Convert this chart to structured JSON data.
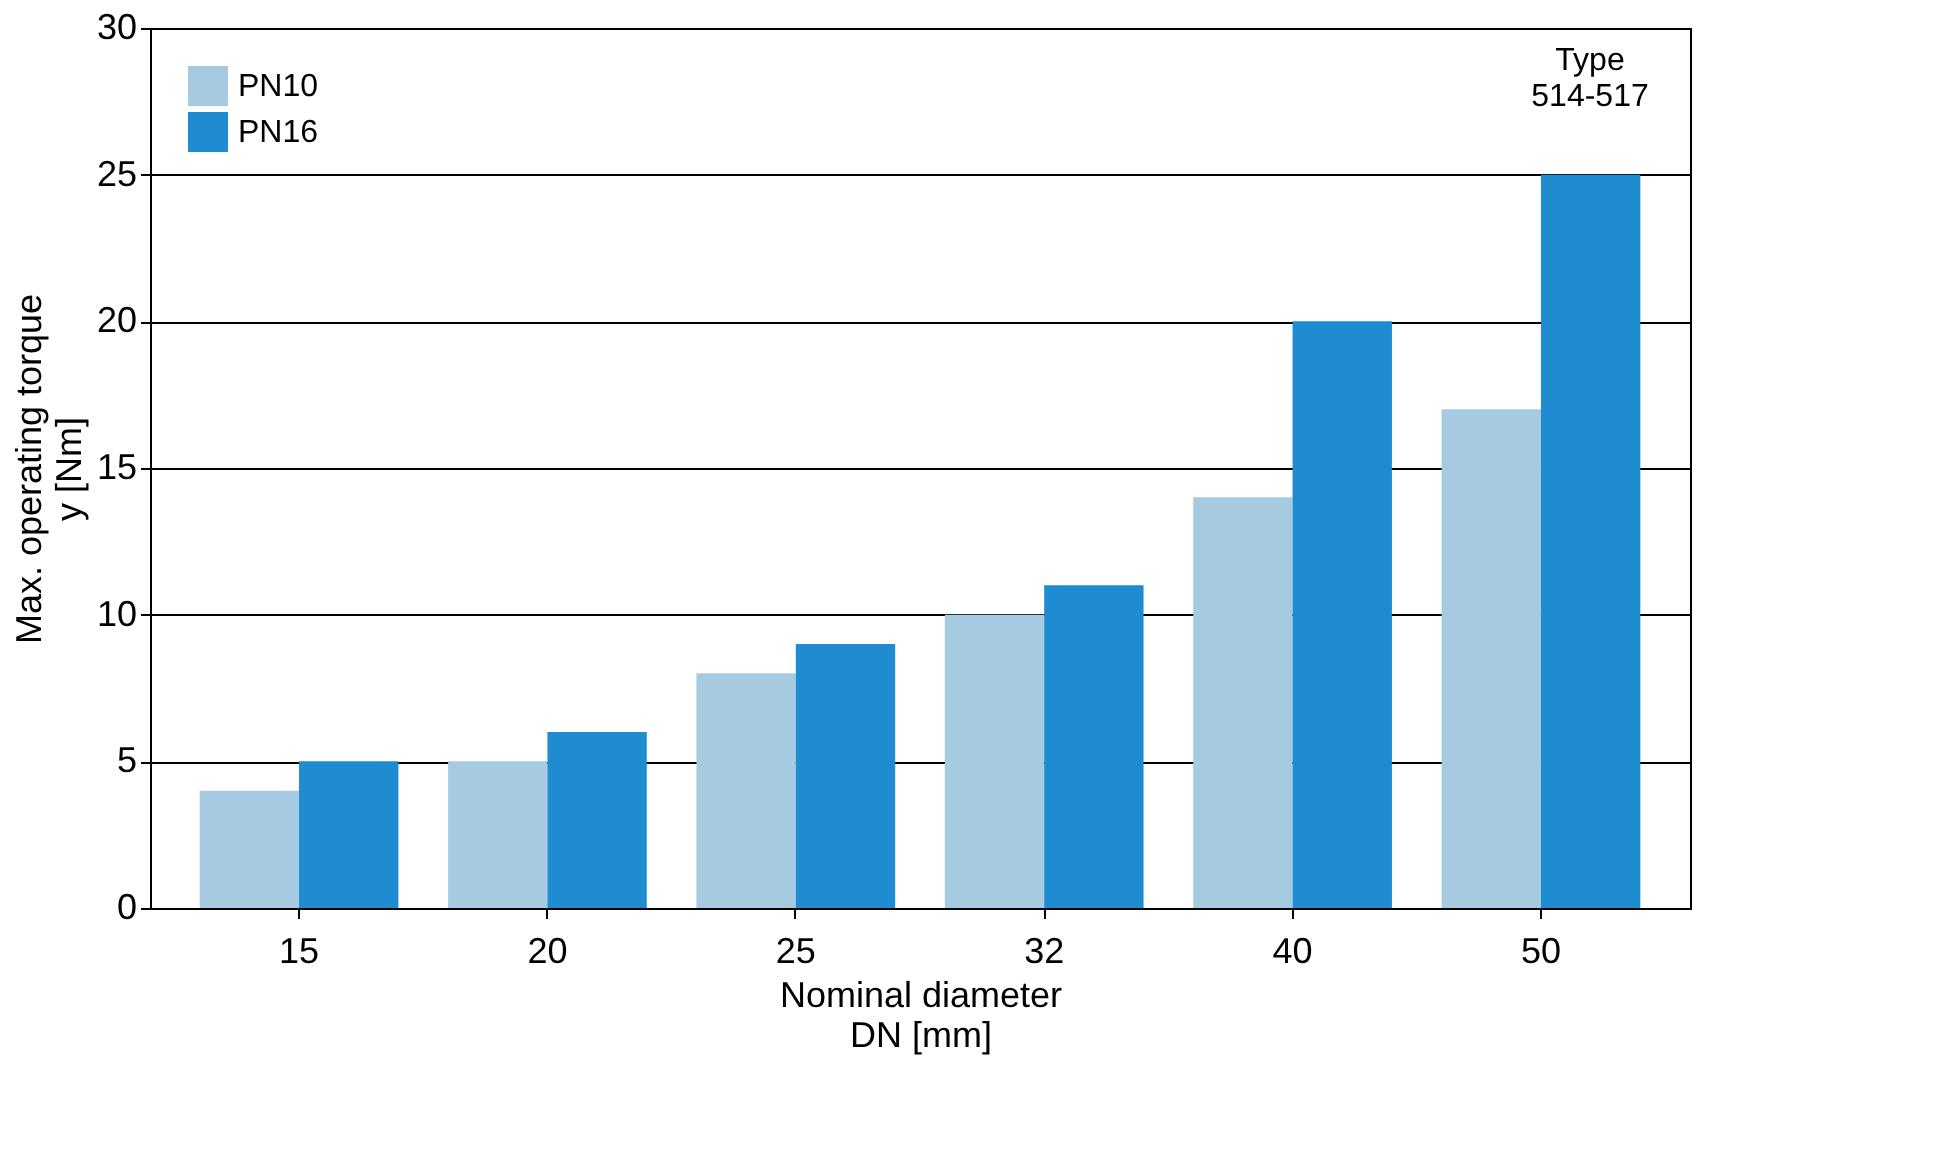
{
  "chart_data": {
    "type": "bar",
    "xlabel": "Nominal diameter\nDN [mm]",
    "ylabel": "Max. operating torque\ny [Nm]",
    "categories": [
      "15",
      "20",
      "25",
      "32",
      "40",
      "50"
    ],
    "series": [
      {
        "name": "PN10",
        "color": "#a6cbe0",
        "values": [
          4,
          5,
          8,
          10,
          14,
          17
        ]
      },
      {
        "name": "PN16",
        "color": "#1f8bd0",
        "values": [
          5,
          6,
          9,
          11,
          20,
          25
        ]
      }
    ],
    "ylim": [
      0,
      30
    ],
    "yticks": [
      0,
      5,
      10,
      15,
      20,
      25,
      30
    ],
    "grid": "y",
    "legend": "top left",
    "annotations": [
      "Type\n514-517"
    ]
  }
}
